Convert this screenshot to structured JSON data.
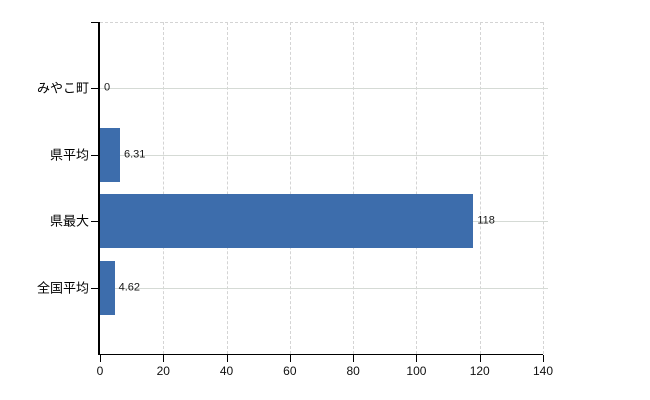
{
  "chart_data": {
    "type": "bar",
    "orientation": "horizontal",
    "title": "",
    "xlabel": "",
    "ylabel": "",
    "categories": [
      "みやこ町",
      "県平均",
      "県最大",
      "全国平均"
    ],
    "values": [
      0,
      6.31,
      118,
      4.62
    ],
    "value_labels": [
      "0",
      "6.31",
      "118",
      "4.62"
    ],
    "x_ticks": [
      0,
      20,
      40,
      60,
      80,
      100,
      120,
      140
    ],
    "x_tick_labels": [
      "0",
      "20",
      "40",
      "60",
      "80",
      "100",
      "120",
      "140"
    ],
    "xlim": [
      0,
      140
    ],
    "grid": true,
    "legend_position": "none",
    "colors": {
      "bar": "#3d6dac",
      "axis": "#000000",
      "gridline": "#d4d4d4",
      "text": "#111111",
      "background": "#ffffff"
    }
  }
}
